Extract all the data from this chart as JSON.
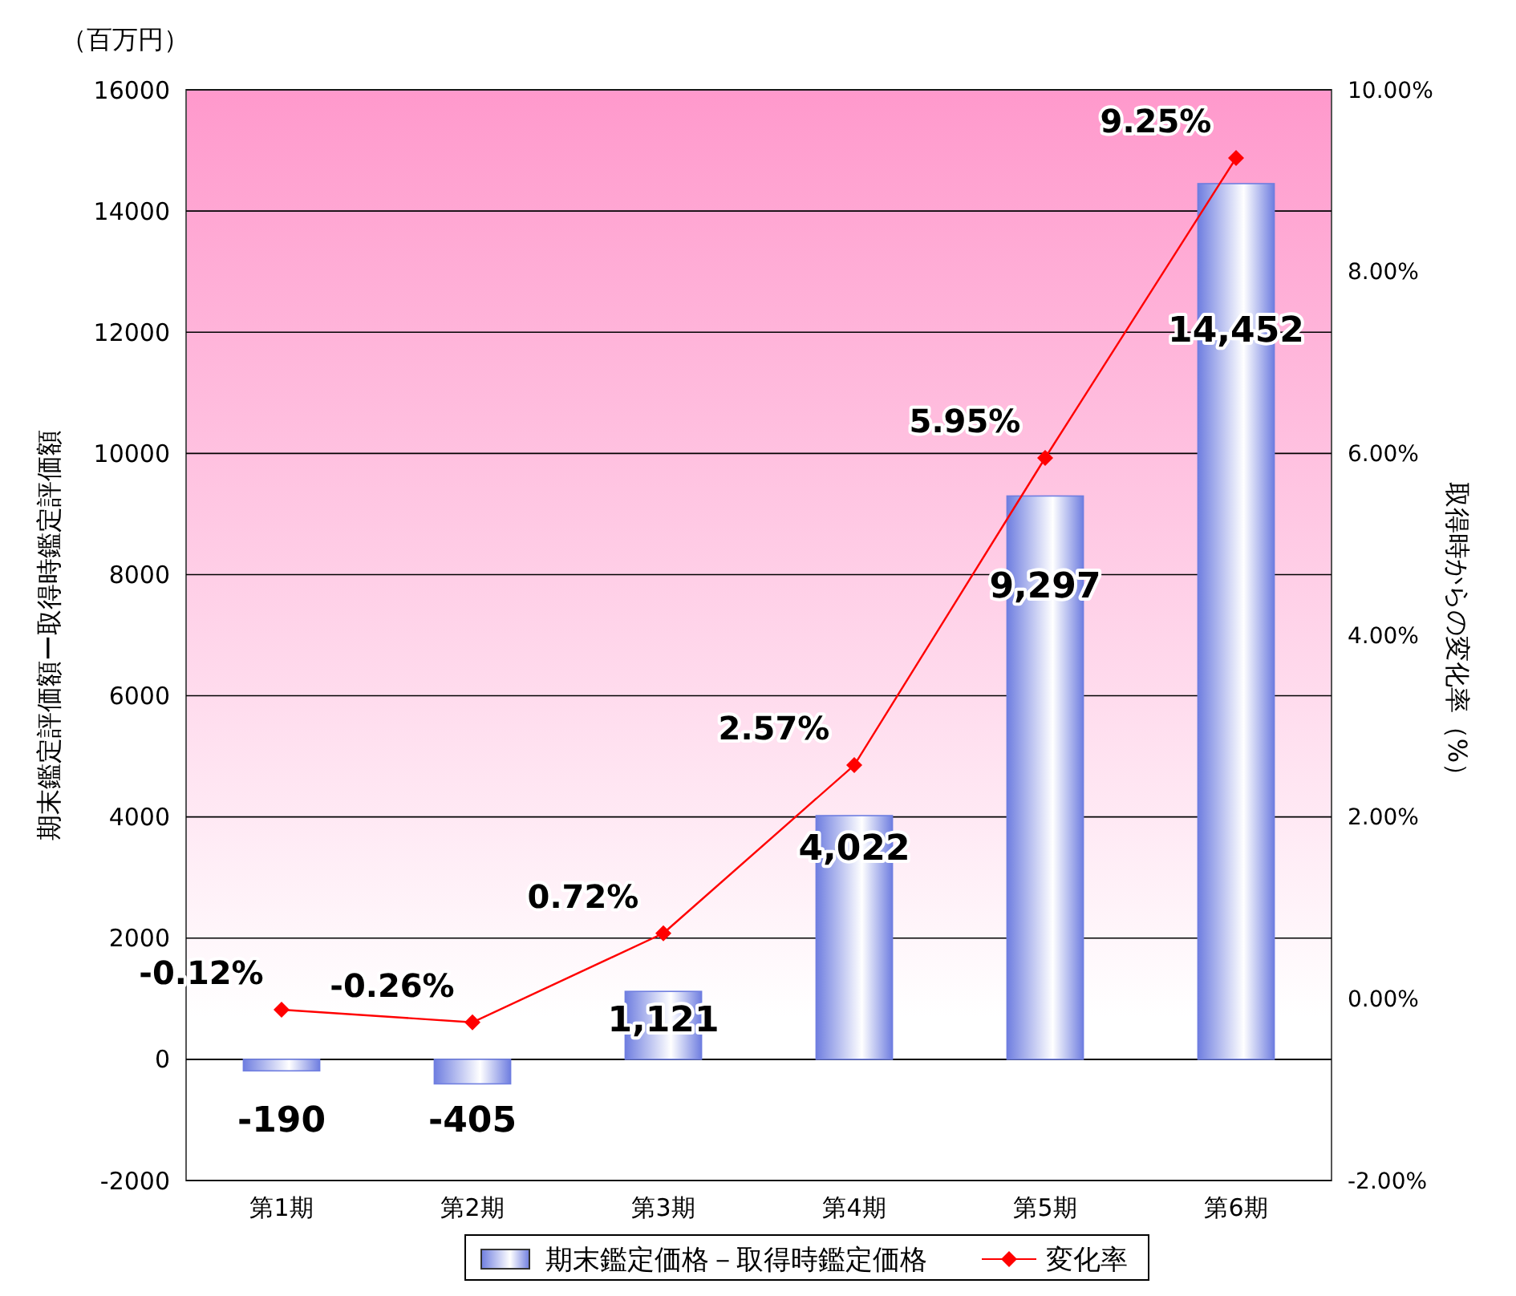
{
  "chart_data": {
    "type": "bar",
    "ylabel": "期末鑑定評価額ー取得時鑑定評価額",
    "y2label": "取得時からの変化率（%）",
    "annotations": [
      "（百万円）"
    ],
    "categories": [
      "第1期",
      "第2期",
      "第3期",
      "第4期",
      "第5期",
      "第6期"
    ],
    "series": [
      {
        "name": "期末鑑定価格－取得時鑑定価格",
        "color": "#6f7ee0",
        "values": [
          -190,
          -405,
          1121,
          4022,
          9297,
          14452
        ],
        "value_labels": [
          "-190",
          "-405",
          "1,121",
          "4,022",
          "9,297",
          "14,452"
        ]
      },
      {
        "name": "変化率",
        "type": "line",
        "axis": "y2",
        "color": "#ff0000",
        "marker": "diamond",
        "values": [
          -0.12,
          -0.26,
          0.72,
          2.57,
          5.95,
          9.25
        ],
        "value_labels": [
          "-0.12%",
          "-0.26%",
          "0.72%",
          "2.57%",
          "5.95%",
          "9.25%"
        ]
      }
    ],
    "ylim": [
      -2000,
      16000
    ],
    "yticks": [
      -2000,
      0,
      2000,
      4000,
      6000,
      8000,
      10000,
      12000,
      14000,
      16000
    ],
    "y2lim": [
      -2,
      10
    ],
    "y2ticks": [
      {
        "value": -2,
        "label": "-2.00%"
      },
      {
        "value": 0,
        "label": "0.00%"
      },
      {
        "value": 2,
        "label": "2.00%"
      },
      {
        "value": 4,
        "label": "4.00%"
      },
      {
        "value": 6,
        "label": "6.00%"
      },
      {
        "value": 8,
        "label": "8.00%"
      },
      {
        "value": 10,
        "label": "10.00%"
      }
    ],
    "grid": "y",
    "legend": "bottom"
  }
}
